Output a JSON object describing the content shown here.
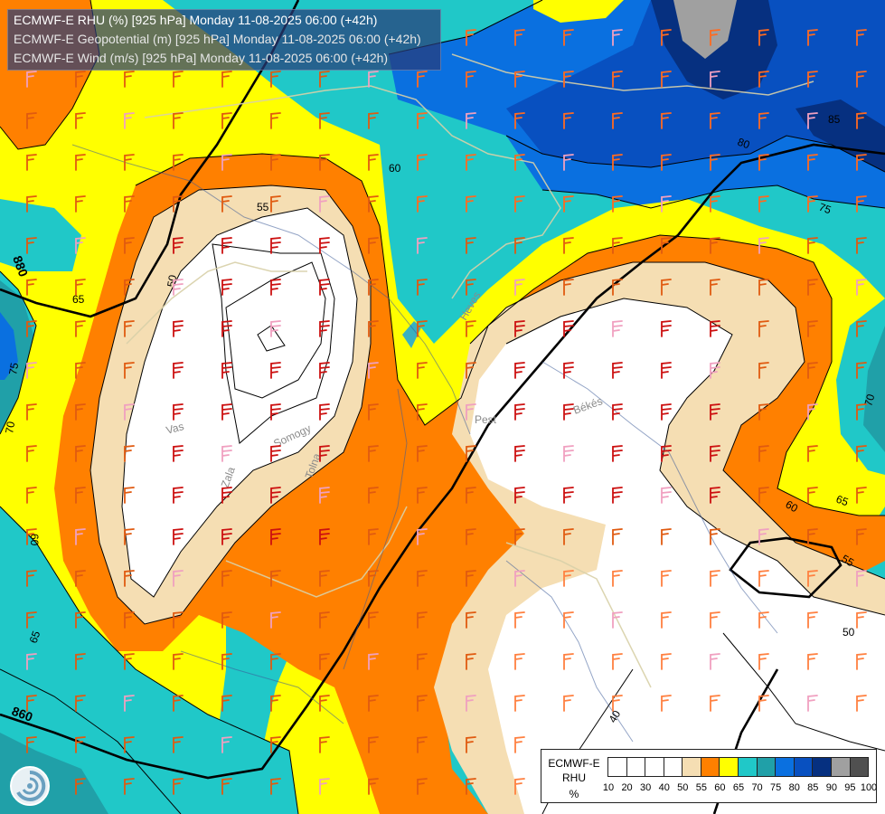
{
  "header": {
    "line1": "ECMWF-E RHU (%) [925 hPa] Monday 11-08-2025 06:00 (+42h)",
    "line2": "ECMWF-E Geopotential (m) [925 hPa] Monday 11-08-2025 06:00 (+42h)",
    "line3": "ECMWF-E Wind (m/s) [925 hPa] Monday 11-08-2025 06:00 (+42h)"
  },
  "legend": {
    "title_line1": "ECMWF-E",
    "title_line2": "RHU",
    "title_line3": "%",
    "ticks": [
      "10",
      "20",
      "30",
      "40",
      "50",
      "55",
      "60",
      "65",
      "70",
      "75",
      "80",
      "85",
      "90",
      "95",
      "100"
    ],
    "colors": [
      "#ffffff",
      "#ffffff",
      "#ffffff",
      "#ffffff",
      "#ffffff",
      "#f5deb3",
      "#ff8000",
      "#ffff00",
      "#20c8c8",
      "#20a0a8",
      "#0a70e0",
      "#0850c0",
      "#063080",
      "#a0a0a0",
      "#505050"
    ]
  },
  "map": {
    "geopotential_labels": [
      "880",
      "860"
    ],
    "rhu_contour_labels": [
      "55",
      "50",
      "75",
      "70",
      "60",
      "65",
      "85",
      "80",
      "75",
      "70",
      "65",
      "60",
      "55",
      "50",
      "40",
      "65",
      "60"
    ],
    "region_labels": [
      "Vas",
      "Zala",
      "Somogy",
      "Tolna",
      "Heves",
      "Pest",
      "Békés"
    ]
  },
  "colors": {
    "rh_white": "#ffffff",
    "rh_55": "#f5deb3",
    "rh_60": "#ff8000",
    "rh_65": "#ffff00",
    "rh_70": "#20c8c8",
    "rh_75": "#20a0a8",
    "rh_80": "#0a70e0",
    "rh_85": "#0850c0",
    "rh_90": "#063080",
    "rh_95": "#a0a0a0"
  }
}
